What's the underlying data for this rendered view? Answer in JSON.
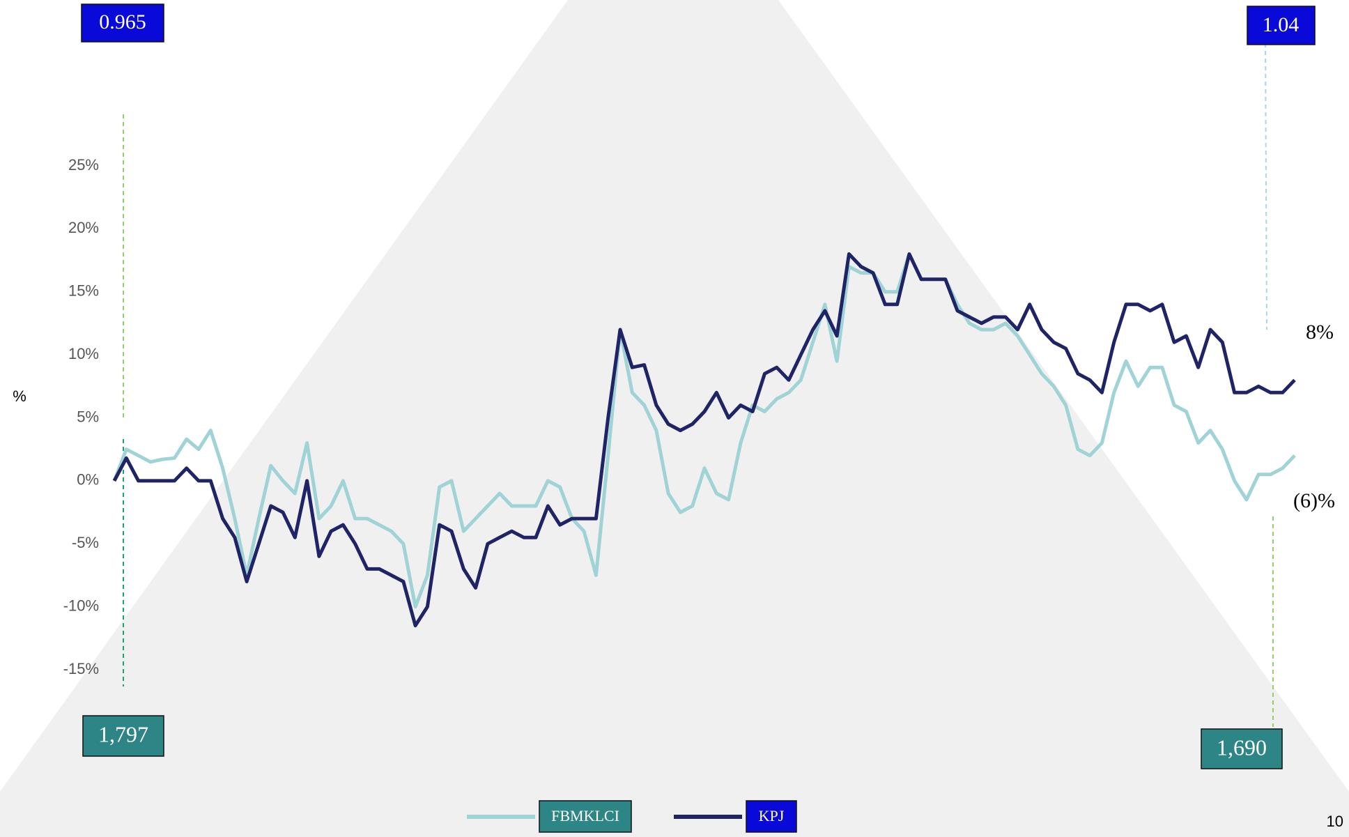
{
  "chart_data": {
    "type": "line",
    "y_label": "%",
    "ylim": [
      -15,
      25
    ],
    "yticks": [
      {
        "value": 25,
        "label": "25%"
      },
      {
        "value": 20,
        "label": "20%"
      },
      {
        "value": 15,
        "label": "15%"
      },
      {
        "value": 10,
        "label": "10%"
      },
      {
        "value": 5,
        "label": "5%"
      },
      {
        "value": 0,
        "label": "0%"
      },
      {
        "value": -5,
        "label": "-5%"
      },
      {
        "value": -10,
        "label": "-10%"
      },
      {
        "value": -15,
        "label": "-15%"
      }
    ],
    "grid": false,
    "series": [
      {
        "name": "FBMKLCI",
        "color": "#9fd3d6",
        "values": [
          0,
          2.5,
          2,
          1.5,
          1.7,
          1.8,
          3.3,
          2.5,
          4,
          1,
          -3,
          -7.5,
          -3,
          1.2,
          0,
          -1,
          3,
          -3,
          -2,
          0,
          -3,
          -3,
          -3.5,
          -4,
          -5,
          -10,
          -7.5,
          -0.5,
          0,
          -4,
          -3,
          -2,
          -1,
          -2,
          -2,
          -2,
          0,
          -0.5,
          -3,
          -4,
          -7.5,
          2,
          12,
          7,
          6,
          4,
          -1,
          -2.5,
          -2,
          1,
          -1,
          -1.5,
          3,
          6,
          5.5,
          6.5,
          7,
          8,
          11,
          14,
          9.5,
          17,
          16.5,
          16.5,
          15,
          15,
          18,
          16,
          16,
          16,
          14,
          12.5,
          12,
          12,
          12.5,
          11.5,
          10,
          8.5,
          7.5,
          6,
          2.5,
          2,
          3,
          7,
          9.5,
          7.5,
          9,
          9,
          6,
          5.5,
          3,
          4,
          2.5,
          0,
          -1.5,
          0.5,
          0.5,
          1,
          2
        ]
      },
      {
        "name": "KPJ",
        "color": "#1f2466",
        "values": [
          0,
          1.8,
          0,
          0,
          0,
          0,
          1,
          0,
          0,
          -3,
          -4.5,
          -8,
          -5,
          -2,
          -2.5,
          -4.5,
          0,
          -6,
          -4,
          -3.5,
          -5,
          -7,
          -7,
          -7.5,
          -8,
          -11.5,
          -10,
          -3.5,
          -4,
          -7,
          -8.5,
          -5,
          -4.5,
          -4,
          -4.5,
          -4.5,
          -2,
          -3.5,
          -3,
          -3,
          -3,
          5,
          12,
          9,
          9.2,
          6,
          4.5,
          4,
          4.5,
          5.5,
          7,
          5,
          6,
          5.5,
          8.5,
          9,
          8,
          10,
          12,
          13.5,
          11.5,
          18,
          17,
          16.5,
          14,
          14,
          18,
          16,
          16,
          16,
          13.5,
          13,
          12.5,
          13,
          13,
          12,
          14,
          12,
          11,
          10.5,
          8.5,
          8,
          7,
          11,
          14,
          14,
          13.5,
          14,
          11,
          11.5,
          9,
          12,
          11,
          7,
          7,
          7.5,
          7,
          7,
          8
        ]
      }
    ],
    "annotations": [
      "0.965",
      "1.04",
      "1,797",
      "1,690",
      "8%",
      "(6)%"
    ]
  },
  "page_number": "10"
}
